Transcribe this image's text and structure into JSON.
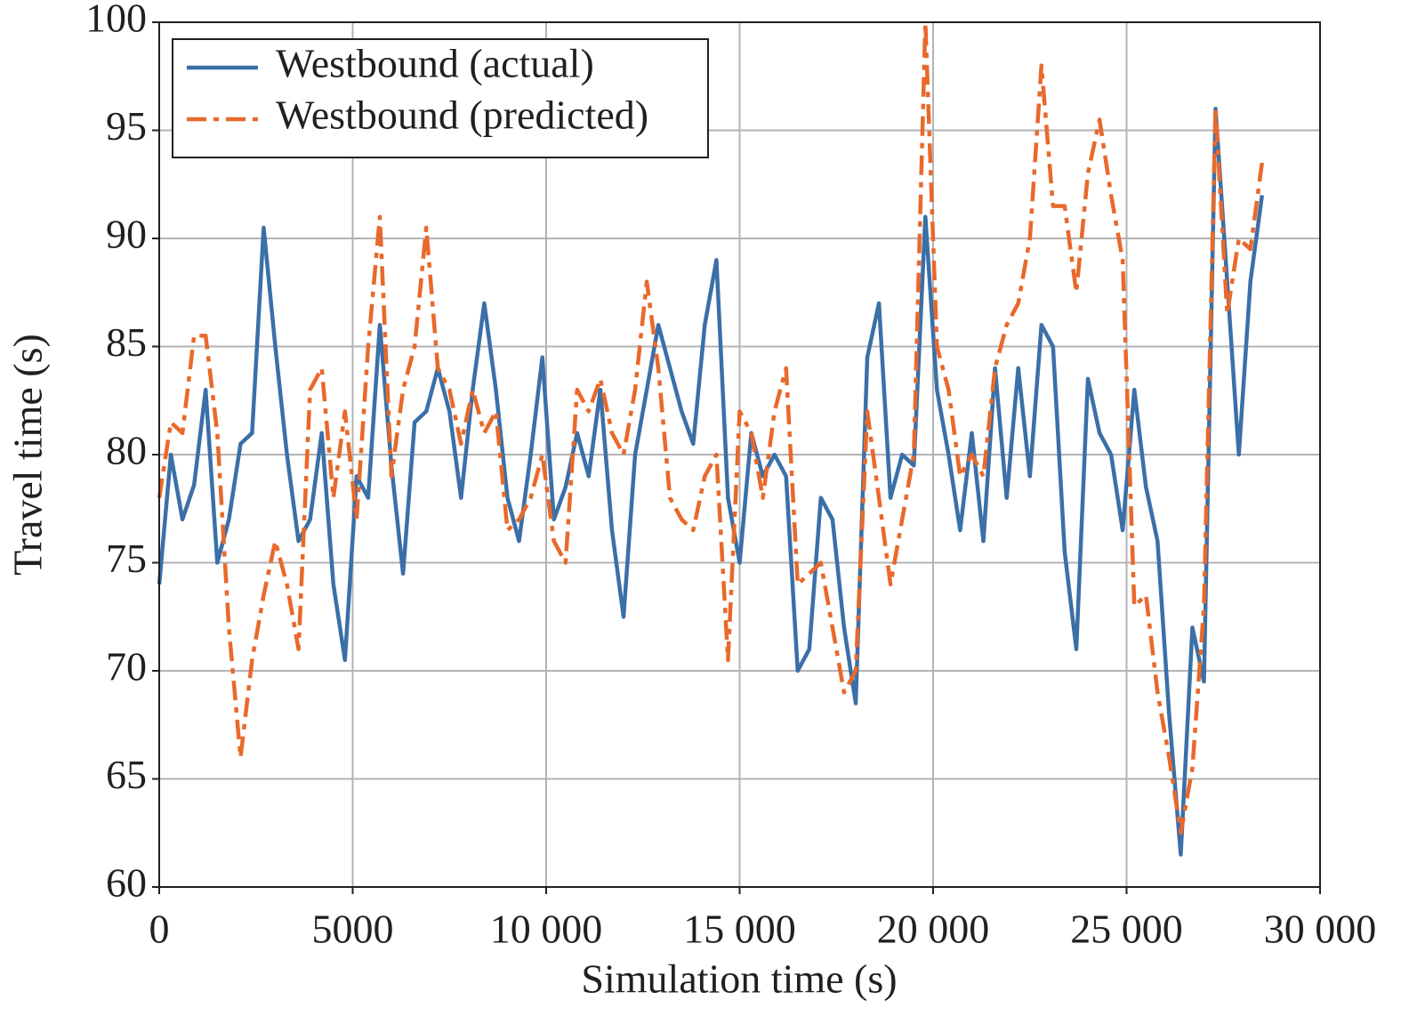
{
  "chart_data": {
    "type": "line",
    "x_label": "Simulation time (s)",
    "y_label": "Travel time (s)",
    "x": [
      0,
      300,
      600,
      900,
      1200,
      1500,
      1800,
      2100,
      2400,
      2700,
      3000,
      3300,
      3600,
      3900,
      4200,
      4500,
      4800,
      5100,
      5400,
      5700,
      6000,
      6300,
      6600,
      6900,
      7200,
      7500,
      7800,
      8100,
      8400,
      8700,
      9000,
      9300,
      9600,
      9900,
      10200,
      10500,
      10800,
      11100,
      11400,
      11700,
      12000,
      12300,
      12600,
      12900,
      13200,
      13500,
      13800,
      14100,
      14400,
      14700,
      15000,
      15300,
      15600,
      15900,
      16200,
      16500,
      16800,
      17100,
      17400,
      17700,
      18000,
      18300,
      18600,
      18900,
      19200,
      19500,
      19800,
      20100,
      20400,
      20700,
      21000,
      21300,
      21600,
      21900,
      22200,
      22500,
      22800,
      23100,
      23400,
      23700,
      24000,
      24300,
      24600,
      24900,
      25200,
      25500,
      25800,
      26100,
      26400,
      26700,
      27000,
      27300,
      27600,
      27900,
      28200,
      28500
    ],
    "series": [
      {
        "name": "Westbound (actual)",
        "color": "#3b6fa8",
        "dash": "none",
        "values": [
          74,
          80,
          77,
          78.6,
          83,
          75,
          77,
          80.5,
          81,
          90.5,
          85,
          80,
          76,
          77,
          81,
          74,
          70.5,
          79,
          78,
          86,
          79.5,
          74.5,
          81.5,
          82,
          84,
          82,
          78,
          83,
          87,
          83,
          78,
          76,
          80,
          84.5,
          77,
          78.5,
          81,
          79,
          83,
          76.5,
          72.5,
          80,
          83,
          86,
          84,
          82,
          80.5,
          86,
          89,
          78,
          75,
          81,
          79,
          80,
          79,
          70,
          71,
          78,
          77,
          72,
          68.5,
          84.5,
          87,
          78,
          80,
          79.5,
          91,
          83,
          80,
          76.5,
          81,
          76,
          84,
          78,
          84,
          79,
          86,
          85,
          75.5,
          71,
          83.5,
          81,
          80,
          76.5,
          83,
          78.5,
          76,
          68,
          61.5,
          72,
          69.5,
          96,
          88,
          80,
          88,
          92
        ]
      },
      {
        "name": "Westbound (predicted)",
        "color": "#e8692b",
        "dash": "22 8 6 8",
        "values": [
          78,
          81.5,
          81,
          85.5,
          85.5,
          81,
          72,
          66,
          70.5,
          73.5,
          76,
          74,
          71,
          83,
          84,
          78,
          82,
          77,
          85,
          91,
          79,
          83,
          85,
          90.5,
          84,
          83,
          80.5,
          83,
          81,
          82,
          76.5,
          77,
          78,
          80,
          76,
          75,
          83,
          82,
          83.5,
          81,
          80,
          83,
          88,
          84,
          78,
          77,
          76.5,
          79,
          80,
          70.5,
          82,
          81,
          78,
          82,
          84,
          74,
          74.5,
          75,
          72,
          69,
          70,
          82,
          78,
          74,
          77,
          80,
          100,
          85,
          83,
          79,
          80,
          79,
          84,
          86,
          87,
          90,
          98,
          91.5,
          91.5,
          87.5,
          93,
          95.5,
          92,
          89,
          73,
          73.5,
          69,
          66,
          62.5,
          65.5,
          73,
          96,
          86.5,
          90,
          89.5,
          93.5
        ]
      }
    ],
    "xlim": [
      0,
      30000
    ],
    "xticks": [
      0,
      5000,
      {
        "value": 10000,
        "label": "10 000"
      },
      {
        "value": 15000,
        "label": "15 000"
      },
      {
        "value": 20000,
        "label": "20 000"
      },
      {
        "value": 25000,
        "label": "25 000"
      },
      {
        "value": 30000,
        "label": "30 000"
      }
    ],
    "ylim": [
      60,
      100
    ],
    "yticks": [
      60,
      65,
      70,
      75,
      80,
      85,
      90,
      95,
      100
    ],
    "grid": true,
    "legend": "upper left"
  }
}
